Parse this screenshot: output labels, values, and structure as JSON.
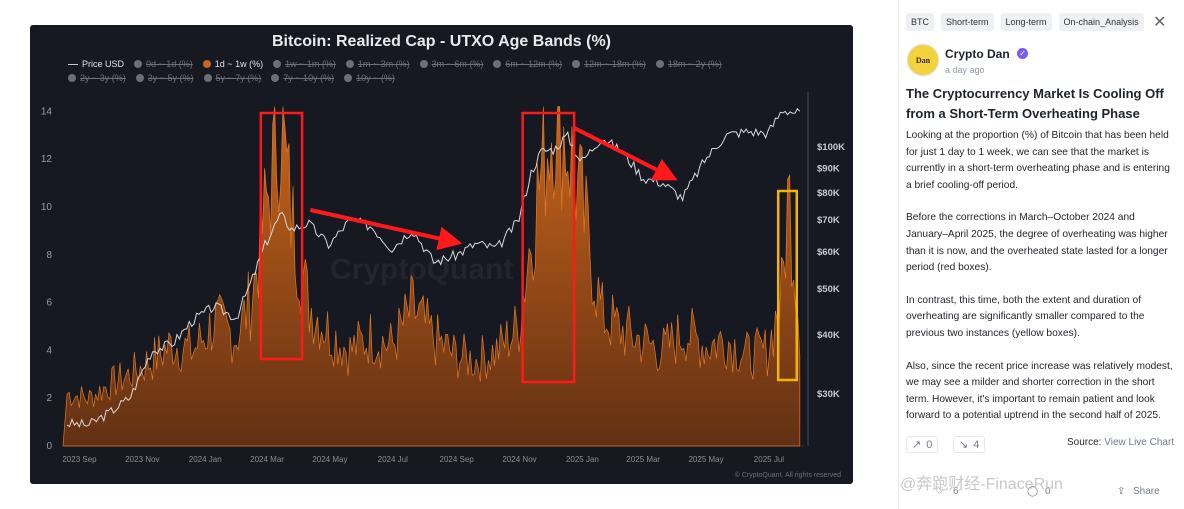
{
  "chart_data": {
    "type": "area",
    "title": "Bitcoin: Realized Cap - UTXO Age Bands (%)",
    "legend_row1": [
      {
        "label": "Price USD",
        "active": true,
        "kind": "line"
      },
      {
        "label": "0d ~ 1d (%)",
        "active": false
      },
      {
        "label": "1d ~ 1w (%)",
        "active": true,
        "color": "#c8641e"
      },
      {
        "label": "1w ~ 1m (%)",
        "active": false
      },
      {
        "label": "1m ~ 3m (%)",
        "active": false
      },
      {
        "label": "3m ~ 6m (%)",
        "active": false
      },
      {
        "label": "6m ~ 12m (%)",
        "active": false
      },
      {
        "label": "12m ~ 18m (%)",
        "active": false
      },
      {
        "label": "18m ~ 2y (%)",
        "active": false
      }
    ],
    "legend_row2": [
      {
        "label": "2y ~ 3y (%)",
        "active": false
      },
      {
        "label": "3y ~ 5y (%)",
        "active": false
      },
      {
        "label": "5y ~ 7y (%)",
        "active": false
      },
      {
        "label": "7y ~ 10y (%)",
        "active": false
      },
      {
        "label": "10y ~ (%)",
        "active": false
      }
    ],
    "x_ticks": [
      "2023 Sep",
      "2023 Nov",
      "2024 Jan",
      "2024 Mar",
      "2024 May",
      "2024 Jul",
      "2024 Sep",
      "2024 Nov",
      "2025 Jan",
      "2025 Mar",
      "2025 May",
      "2025 Jul"
    ],
    "y_left_ticks": [
      0,
      2,
      4,
      6,
      8,
      10,
      12,
      14
    ],
    "y_left_lim": [
      0,
      14.6
    ],
    "y_right_ticks": [
      "$30K",
      "$40K",
      "$50K",
      "$60K",
      "$70K",
      "$80K",
      "$90K",
      "$100K"
    ],
    "y_right_values": [
      30000,
      40000,
      50000,
      60000,
      70000,
      80000,
      90000,
      100000
    ],
    "y_right_scale": "log",
    "series_band_1d_1w": {
      "x": [
        "2023-08-20",
        "2023-09-10",
        "2023-10-01",
        "2023-10-20",
        "2023-11-10",
        "2023-12-01",
        "2023-12-20",
        "2024-01-10",
        "2024-01-31",
        "2024-02-15",
        "2024-02-28",
        "2024-03-08",
        "2024-03-14",
        "2024-03-25",
        "2024-04-10",
        "2024-04-30",
        "2024-05-20",
        "2024-06-10",
        "2024-06-30",
        "2024-07-20",
        "2024-08-10",
        "2024-08-31",
        "2024-09-20",
        "2024-10-10",
        "2024-10-31",
        "2024-11-12",
        "2024-11-22",
        "2024-12-05",
        "2024-12-17",
        "2024-12-31",
        "2025-01-20",
        "2025-02-10",
        "2025-03-01",
        "2025-03-20",
        "2025-04-10",
        "2025-05-01",
        "2025-05-20",
        "2025-06-10",
        "2025-06-30",
        "2025-07-14",
        "2025-07-20",
        "2025-07-31"
      ],
      "values": [
        2.2,
        2.0,
        2.6,
        3.0,
        3.6,
        4.3,
        4.0,
        5.2,
        4.6,
        6.2,
        9.8,
        12.0,
        13.8,
        9.5,
        6.0,
        4.8,
        4.0,
        4.6,
        4.2,
        5.8,
        4.5,
        3.8,
        3.6,
        4.0,
        5.0,
        8.8,
        11.5,
        14.2,
        12.8,
        10.2,
        5.5,
        4.8,
        4.4,
        4.0,
        4.8,
        4.2,
        4.5,
        3.8,
        4.0,
        6.5,
        10.8,
        5.0
      ]
    },
    "series_price_usd": {
      "x": [
        "2023-08-20",
        "2023-09-10",
        "2023-10-01",
        "2023-10-20",
        "2023-11-10",
        "2023-12-01",
        "2023-12-20",
        "2024-01-10",
        "2024-01-31",
        "2024-02-15",
        "2024-02-28",
        "2024-03-14",
        "2024-03-25",
        "2024-04-10",
        "2024-04-30",
        "2024-05-20",
        "2024-06-10",
        "2024-06-30",
        "2024-07-20",
        "2024-08-10",
        "2024-08-31",
        "2024-09-20",
        "2024-10-10",
        "2024-10-31",
        "2024-11-12",
        "2024-11-22",
        "2024-12-05",
        "2024-12-17",
        "2024-12-31",
        "2025-01-20",
        "2025-02-10",
        "2025-03-01",
        "2025-03-20",
        "2025-04-08",
        "2025-04-30",
        "2025-05-20",
        "2025-06-10",
        "2025-06-30",
        "2025-07-14",
        "2025-07-31"
      ],
      "values": [
        26000,
        25800,
        27500,
        29500,
        37000,
        38500,
        43000,
        46000,
        43500,
        52000,
        62000,
        72000,
        67000,
        69000,
        62000,
        70000,
        68000,
        61000,
        67000,
        57000,
        59000,
        62500,
        61000,
        70000,
        88000,
        98000,
        99000,
        106000,
        93000,
        105000,
        97000,
        86000,
        84000,
        78000,
        94000,
        106000,
        108000,
        107000,
        120000,
        118000
      ]
    },
    "annotations": {
      "red_boxes": [
        [
          "2024-02-24",
          "2024-04-04"
        ],
        [
          "2024-11-04",
          "2024-12-24"
        ]
      ],
      "yellow_box": [
        "2025-07-10",
        "2025-07-28"
      ],
      "arrows": [
        [
          "2024-04-12",
          "2024-08-30"
        ],
        [
          "2024-12-24",
          "2025-03-28"
        ]
      ]
    },
    "watermark": "CryptoQuant",
    "credit": "© CryptoQuant. All rights reserved"
  },
  "side": {
    "tags": [
      "BTC",
      "Short-term",
      "Long-term",
      "On-chain_Analysis"
    ],
    "close_glyph": "✕",
    "author": "Crypto Dan",
    "avatar_text": "Dan",
    "verified_glyph": "✓",
    "posted": "a day ago",
    "headline": "The Cryptocurrency Market Is Cooling Off from a Short-Term Overheating Phase",
    "paragraphs": [
      "Looking at the proportion (%) of Bitcoin that has been held for just 1 day to 1 week, we can see that the market is currently in a short-term overheating phase and is entering a brief cooling-off period.",
      "Before the corrections in March–October 2024 and January–April 2025, the degree of overheating was higher than it is now, and the overheated state lasted for a longer period (red boxes).",
      "In contrast, this time, both the extent and duration of overheating are significantly smaller compared to the previous two instances (yellow boxes).",
      "Also, since the recent price increase was relatively modest, we may see a milder and shorter correction in the short term. However, it's important to remain patient and look forward to a potential uptrend in the second half of 2025."
    ],
    "bull_icon": "↗",
    "bull_count": "0",
    "bear_icon": "↘",
    "bear_count": "4",
    "source_label": "Source:",
    "source_link": "View Live Chart",
    "footer_likes": "6",
    "footer_comments": "0",
    "footer_share": "Share",
    "site_watermark": "@奔跑财经-FinaceRun"
  }
}
